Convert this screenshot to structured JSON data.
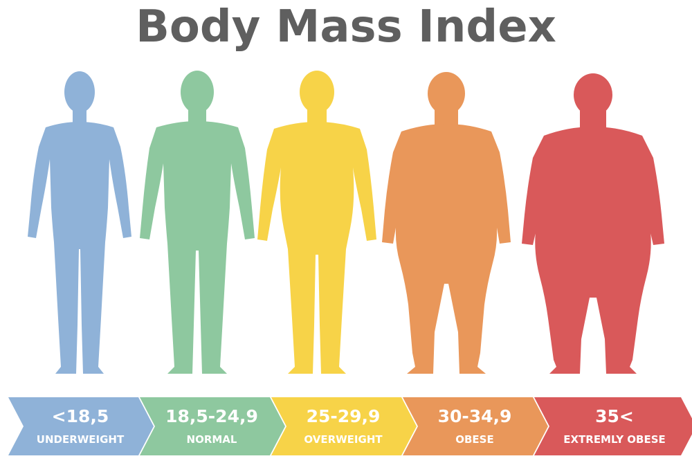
{
  "title": "Body Mass Index",
  "categories": [
    {
      "range": "<18,5",
      "label": "UNDERWEIGHT",
      "color": "#8fb2d8",
      "body": "body-underweight"
    },
    {
      "range": "18,5-24,9",
      "label": "NORMAL",
      "color": "#8ec89f",
      "body": "body-normal"
    },
    {
      "range": "25-29,9",
      "label": "OVERWEIGHT",
      "color": "#f7d348",
      "body": "body-overweight"
    },
    {
      "range": "30-34,9",
      "label": "OBESE",
      "color": "#e9975a",
      "body": "body-obese"
    },
    {
      "range": "35<",
      "label": "EXTREMLY OBESE",
      "color": "#d9595a",
      "body": "body-extremely-obese"
    }
  ]
}
